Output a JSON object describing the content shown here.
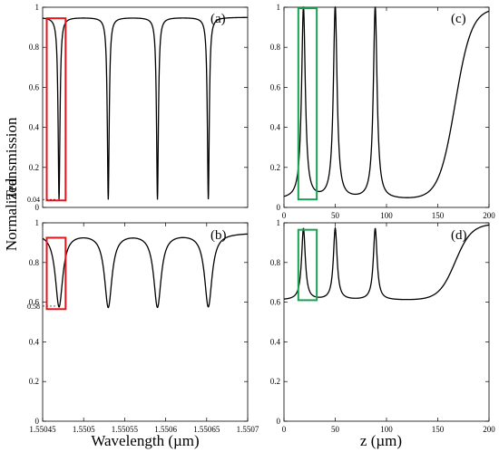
{
  "figure": {
    "ylabel_left": "Normalized",
    "ylabel_right": "Transmission",
    "xlabel_left": "Wavelength (µm)",
    "xlabel_right": "z (µm)"
  },
  "colors": {
    "line": "#000000",
    "red_box": "#e8141c",
    "green_box": "#1aa052"
  },
  "chart_data": [
    {
      "type": "line",
      "panel": "(a)",
      "xlim": [
        1.55045,
        1.5507
      ],
      "ylim": [
        0,
        1
      ],
      "xticks": [],
      "yticks": [
        0,
        0.2,
        0.4,
        0.6,
        0.8,
        1
      ],
      "ytick_labels": [
        "0",
        "0.2",
        "0.4",
        "0.6",
        "0.8",
        "1"
      ],
      "extra_ytick": {
        "value": 0.04,
        "label": "0.04"
      },
      "series": [
        {
          "style": "lorentzian-dips",
          "baseline": 0.95,
          "dips": [
            {
              "x": 1.55047,
              "min": 0.04
            },
            {
              "x": 1.55053,
              "min": 0.04
            },
            {
              "x": 1.55059,
              "min": 0.04
            },
            {
              "x": 1.550652,
              "min": 0.04
            }
          ]
        }
      ],
      "highlight": {
        "color": "red",
        "x": [
          1.550455,
          1.550478
        ],
        "y": [
          0.035,
          0.945
        ]
      }
    },
    {
      "type": "line",
      "panel": "(b)",
      "xlim": [
        1.55045,
        1.5507
      ],
      "ylim": [
        0,
        1
      ],
      "xticks": [
        1.55045,
        1.5505,
        1.55055,
        1.5506,
        1.55065,
        1.5507
      ],
      "xtick_labels": [
        "1.55045",
        "1.5505",
        "1.55055",
        "1.5506",
        "1.55065",
        "1.5507"
      ],
      "yticks": [
        0,
        0.2,
        0.4,
        0.6,
        0.8,
        1
      ],
      "ytick_labels": [
        "0",
        "0.2",
        "0.4",
        "0.6",
        "0.8",
        "1"
      ],
      "extra_ytick": {
        "value": 0.58,
        "label": "0.58"
      },
      "series": [
        {
          "style": "lorentzian-dips",
          "baseline": 0.95,
          "dips": [
            {
              "x": 1.55047,
              "min": 0.58
            },
            {
              "x": 1.55053,
              "min": 0.58
            },
            {
              "x": 1.55059,
              "min": 0.58
            },
            {
              "x": 1.550652,
              "min": 0.58
            }
          ]
        }
      ],
      "highlight": {
        "color": "red",
        "x": [
          1.550455,
          1.550478
        ],
        "y": [
          0.565,
          0.925
        ]
      }
    },
    {
      "type": "line",
      "panel": "(c)",
      "xlim": [
        0,
        200
      ],
      "ylim": [
        0,
        1
      ],
      "xticks": [
        0,
        50,
        100,
        150,
        200
      ],
      "xtick_labels": [
        "0",
        "50",
        "100",
        "150",
        "200"
      ],
      "yticks": [
        0,
        0.2,
        0.4,
        0.6,
        0.8,
        1
      ],
      "ytick_labels": [
        "0",
        "0.2",
        "0.4",
        "0.6",
        "0.8",
        "1"
      ],
      "series": [
        {
          "style": "peaks-and-rise",
          "floor": 0.04,
          "peaks": [
            {
              "x": 19,
              "max": 1.0
            },
            {
              "x": 50,
              "max": 1.0
            },
            {
              "x": 89,
              "max": 1.0
            }
          ],
          "rise": {
            "x_mid": 167,
            "top": 0.995
          }
        }
      ],
      "highlight": {
        "color": "green",
        "x": [
          14,
          32
        ],
        "y": [
          0.04,
          0.995
        ]
      }
    },
    {
      "type": "line",
      "panel": "(d)",
      "xlim": [
        0,
        200
      ],
      "ylim": [
        0,
        1
      ],
      "xticks": [
        0,
        50,
        100,
        150,
        200
      ],
      "xtick_labels": [
        "0",
        "50",
        "100",
        "150",
        "200"
      ],
      "yticks": [
        0,
        0.2,
        0.4,
        0.6,
        0.8,
        1
      ],
      "ytick_labels": [
        "0",
        "0.2",
        "0.4",
        "0.6",
        "0.8",
        "1"
      ],
      "series": [
        {
          "style": "peaks-and-rise",
          "floor": 0.61,
          "peaks": [
            {
              "x": 19,
              "max": 0.97
            },
            {
              "x": 50,
              "max": 0.97
            },
            {
              "x": 89,
              "max": 0.97
            }
          ],
          "rise": {
            "x_mid": 167,
            "top": 0.995
          }
        }
      ],
      "highlight": {
        "color": "green",
        "x": [
          14,
          32
        ],
        "y": [
          0.61,
          0.965
        ]
      }
    }
  ]
}
